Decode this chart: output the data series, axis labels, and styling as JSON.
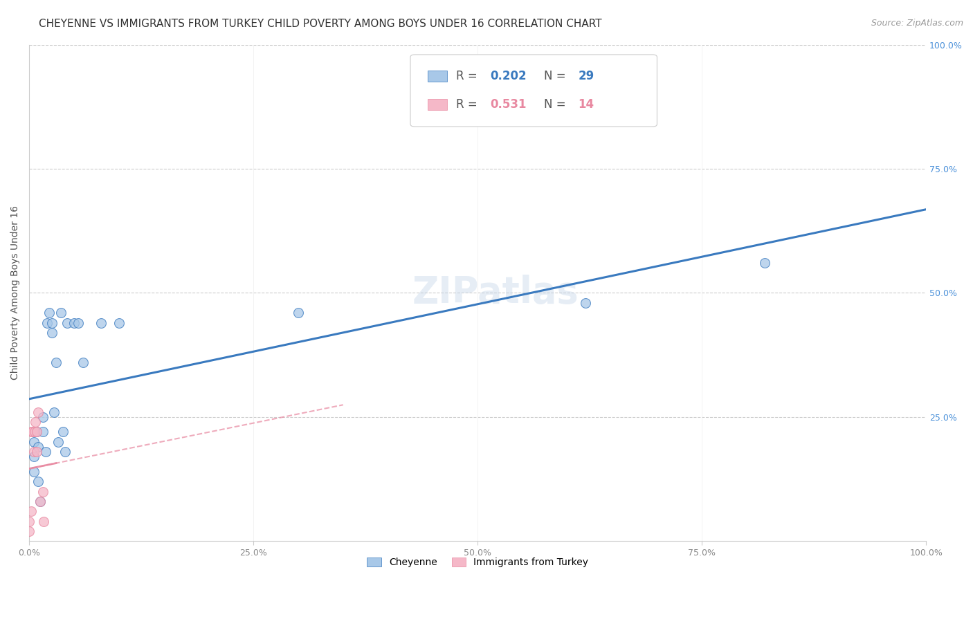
{
  "title": "CHEYENNE VS IMMIGRANTS FROM TURKEY CHILD POVERTY AMONG BOYS UNDER 16 CORRELATION CHART",
  "source": "Source: ZipAtlas.com",
  "ylabel": "Child Poverty Among Boys Under 16",
  "r_cheyenne": 0.202,
  "n_cheyenne": 29,
  "r_turkey": 0.531,
  "n_turkey": 14,
  "cheyenne_color": "#a8c8e8",
  "turkey_color": "#f5b8c8",
  "cheyenne_line_color": "#3a7abf",
  "turkey_line_color": "#e888a0",
  "watermark": "ZIPatlas",
  "cheyenne_x": [
    0.005,
    0.005,
    0.005,
    0.008,
    0.01,
    0.01,
    0.012,
    0.015,
    0.015,
    0.018,
    0.02,
    0.022,
    0.025,
    0.025,
    0.028,
    0.03,
    0.032,
    0.035,
    0.038,
    0.04,
    0.042,
    0.05,
    0.055,
    0.06,
    0.08,
    0.1,
    0.3,
    0.62,
    0.82
  ],
  "cheyenne_y": [
    0.2,
    0.17,
    0.14,
    0.22,
    0.19,
    0.12,
    0.08,
    0.25,
    0.22,
    0.18,
    0.44,
    0.46,
    0.42,
    0.44,
    0.26,
    0.36,
    0.2,
    0.46,
    0.22,
    0.18,
    0.44,
    0.44,
    0.44,
    0.36,
    0.44,
    0.44,
    0.46,
    0.48,
    0.56
  ],
  "turkey_x": [
    0.0,
    0.0,
    0.002,
    0.002,
    0.004,
    0.005,
    0.006,
    0.007,
    0.008,
    0.008,
    0.01,
    0.012,
    0.015,
    0.016
  ],
  "turkey_y": [
    0.02,
    0.04,
    0.06,
    0.22,
    0.22,
    0.18,
    0.22,
    0.24,
    0.22,
    0.18,
    0.26,
    0.08,
    0.1,
    0.04
  ],
  "xlim": [
    0.0,
    1.0
  ],
  "ylim": [
    0.0,
    1.0
  ],
  "xticks": [
    0.0,
    0.25,
    0.5,
    0.75,
    1.0
  ],
  "yticks": [
    0.0,
    0.25,
    0.5,
    0.75,
    1.0
  ],
  "xticklabels": [
    "0.0%",
    "25.0%",
    "50.0%",
    "75.0%",
    "100.0%"
  ],
  "right_yticklabels": [
    "",
    "25.0%",
    "50.0%",
    "75.0%",
    "100.0%"
  ],
  "legend_cheyenne": "Cheyenne",
  "legend_turkey": "Immigrants from Turkey",
  "title_fontsize": 11,
  "axis_label_fontsize": 10,
  "tick_fontsize": 9,
  "dot_size": 100
}
